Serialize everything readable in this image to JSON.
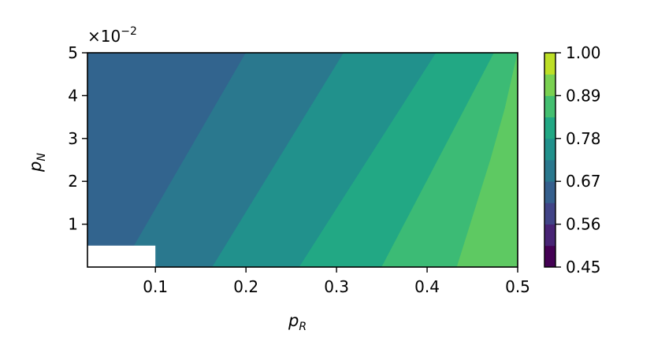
{
  "chart_data": {
    "type": "contourf",
    "xlabel": "p",
    "xlabel_sub": "R",
    "ylabel": "p",
    "ylabel_sub": "N",
    "y_scale_label": "×10",
    "y_scale_exp": "−2",
    "xlim": [
      0.025,
      0.5
    ],
    "ylim": [
      0.0,
      5.0
    ],
    "x_ticks": [
      "0.1",
      "0.2",
      "0.3",
      "0.4",
      "0.5"
    ],
    "x_tick_values": [
      0.1,
      0.2,
      0.3,
      0.4,
      0.5
    ],
    "y_ticks": [
      "1",
      "2",
      "3",
      "4",
      "5"
    ],
    "y_tick_values": [
      1,
      2,
      3,
      4,
      5
    ],
    "colorbar": {
      "ticks": [
        "1.00",
        "0.89",
        "0.78",
        "0.67",
        "0.56",
        "0.45"
      ],
      "tick_values": [
        1.0,
        0.89,
        0.78,
        0.67,
        0.56,
        0.45
      ],
      "range": [
        0.45,
        1.0
      ],
      "levels": [
        {
          "lo": 0.45,
          "hi": 0.505,
          "color": "#440154"
        },
        {
          "lo": 0.505,
          "hi": 0.56,
          "color": "#482475"
        },
        {
          "lo": 0.56,
          "hi": 0.615,
          "color": "#414487"
        },
        {
          "lo": 0.615,
          "hi": 0.67,
          "color": "#355f8d"
        },
        {
          "lo": 0.67,
          "hi": 0.725,
          "color": "#2a788e"
        },
        {
          "lo": 0.725,
          "hi": 0.78,
          "color": "#21918c"
        },
        {
          "lo": 0.78,
          "hi": 0.835,
          "color": "#22a884"
        },
        {
          "lo": 0.835,
          "hi": 0.89,
          "color": "#44bf70"
        },
        {
          "lo": 0.89,
          "hi": 0.945,
          "color": "#7ad151"
        },
        {
          "lo": 0.945,
          "hi": 1.0,
          "color": "#bddf26"
        }
      ]
    },
    "regions": [
      {
        "level_range": [
          0.615,
          0.67
        ],
        "color": "#32648e",
        "polygon": [
          [
            0.025,
            0
          ],
          [
            0.063,
            0
          ],
          [
            0.2,
            5
          ],
          [
            0.025,
            5
          ]
        ]
      },
      {
        "level_range": [
          0.67,
          0.725
        ],
        "color": "#2a788e",
        "polygon": [
          [
            0.063,
            0
          ],
          [
            0.163,
            0
          ],
          [
            0.308,
            5
          ],
          [
            0.2,
            5
          ]
        ]
      },
      {
        "level_range": [
          0.725,
          0.78
        ],
        "color": "#21918c",
        "polygon": [
          [
            0.163,
            0
          ],
          [
            0.259,
            0
          ],
          [
            0.41,
            5
          ],
          [
            0.308,
            5
          ]
        ]
      },
      {
        "level_range": [
          0.78,
          0.835
        ],
        "color": "#22a884",
        "polygon": [
          [
            0.259,
            0
          ],
          [
            0.35,
            0
          ],
          [
            0.474,
            5
          ],
          [
            0.41,
            5
          ]
        ]
      },
      {
        "level_range": [
          0.835,
          0.89
        ],
        "color": "#3cbb75",
        "polygon": [
          [
            0.35,
            0
          ],
          [
            0.433,
            0
          ],
          [
            0.47,
            2.5
          ],
          [
            0.486,
            3.7
          ],
          [
            0.5,
            5
          ],
          [
            0.474,
            5
          ]
        ]
      },
      {
        "level_range": [
          0.89,
          0.945
        ],
        "color": "#5ec962",
        "polygon": [
          [
            0.433,
            0
          ],
          [
            0.5,
            0
          ],
          [
            0.5,
            5
          ],
          [
            0.486,
            3.7
          ],
          [
            0.47,
            2.5
          ]
        ]
      }
    ],
    "masked_region": {
      "x": [
        0.025,
        0.1
      ],
      "y": [
        0.0,
        0.5
      ]
    }
  }
}
